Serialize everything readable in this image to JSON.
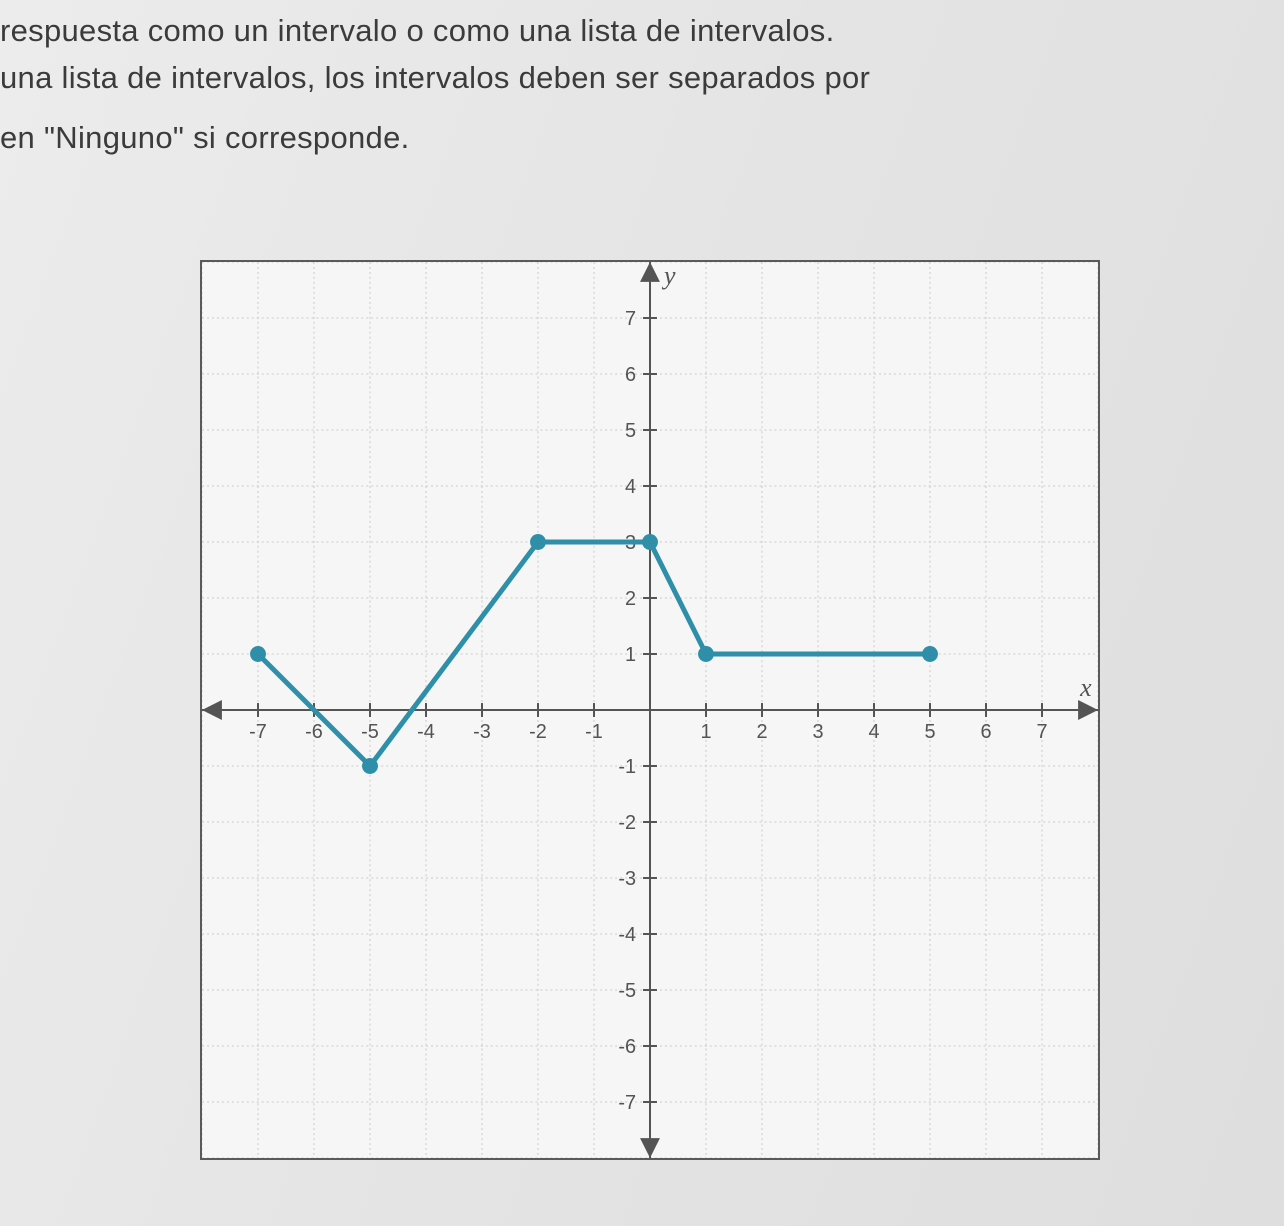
{
  "question": {
    "line1": "respuesta como un intervalo o como una lista de intervalos.",
    "line2": "una lista de intervalos, los intervalos deben ser separados por",
    "line3": "en \"Ninguno\" si corresponde."
  },
  "chart": {
    "type": "line",
    "background_color": "#f6f6f6",
    "border_color": "#5a5a5a",
    "grid_color": "#c9c9c9",
    "axis_color": "#545454",
    "tick_color": "#545454",
    "tick_label_color": "#545454",
    "tick_label_fontsize": 20,
    "axis_label_fontsize": 26,
    "line_color": "#2f8fa8",
    "point_color": "#2f8fa8",
    "line_width": 5,
    "point_radius": 8,
    "xlim": [
      -8,
      8
    ],
    "ylim": [
      -8,
      8
    ],
    "xticks": [
      -7,
      -6,
      -5,
      -4,
      -3,
      -2,
      -1,
      1,
      2,
      3,
      4,
      5,
      6,
      7
    ],
    "yticks": [
      -7,
      -6,
      -5,
      -4,
      -3,
      -2,
      -1,
      1,
      2,
      3,
      4,
      5,
      6,
      7
    ],
    "xtick_labels": [
      "-7",
      "-6",
      "-5",
      "-4",
      "-3",
      "-2",
      "-1",
      "1",
      "2",
      "3",
      "4",
      "5",
      "6",
      "7"
    ],
    "ytick_labels": [
      "-7",
      "-6",
      "-5",
      "-4",
      "-3",
      "-2",
      "-1",
      "1",
      "2",
      "3",
      "4",
      "5",
      "6",
      "7"
    ],
    "x_axis_label": "x",
    "y_axis_label": "y",
    "data_points": [
      {
        "x": -7,
        "y": 1
      },
      {
        "x": -5,
        "y": -1
      },
      {
        "x": -2,
        "y": 3
      },
      {
        "x": 0,
        "y": 3
      },
      {
        "x": 1,
        "y": 1
      },
      {
        "x": 5,
        "y": 1
      }
    ],
    "endpoint_markers": [
      {
        "x": -7,
        "y": 1
      },
      {
        "x": -5,
        "y": -1
      },
      {
        "x": -2,
        "y": 3
      },
      {
        "x": 0,
        "y": 3
      },
      {
        "x": 1,
        "y": 1
      },
      {
        "x": 5,
        "y": 1
      }
    ]
  }
}
